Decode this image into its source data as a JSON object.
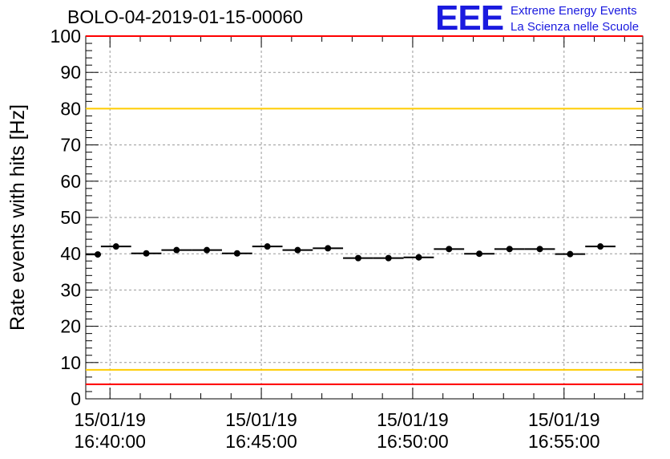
{
  "run_title": "BOLO-04-2019-01-15-00060",
  "logo": {
    "mark": "EEE",
    "line1": "Extreme Energy Events",
    "line2": "La Scienza nelle Scuole",
    "color": "#1a1adf"
  },
  "chart_data": {
    "type": "scatter",
    "title": "BOLO-04-2019-01-15-00060",
    "ylabel": "Rate events with hits [Hz]",
    "xlabel": "",
    "ylim": [
      0,
      100
    ],
    "yticks": [
      0,
      10,
      20,
      30,
      40,
      50,
      60,
      70,
      80,
      90,
      100
    ],
    "xlim": [
      "2019-01-15 16:39:12",
      "2019-01-15 16:57:36"
    ],
    "xticks": [
      {
        "x": "2019-01-15 16:40:00",
        "date": "15/01/19",
        "time": "16:40:00"
      },
      {
        "x": "2019-01-15 16:45:00",
        "date": "15/01/19",
        "time": "16:45:00"
      },
      {
        "x": "2019-01-15 16:50:00",
        "date": "15/01/19",
        "time": "16:50:00"
      },
      {
        "x": "2019-01-15 16:55:00",
        "date": "15/01/19",
        "time": "16:55:00"
      }
    ],
    "grid": true,
    "bin_width_seconds": 60,
    "points": [
      {
        "x": "2019-01-15 16:39:12",
        "y": 39.8
      },
      {
        "x": "2019-01-15 16:40:12",
        "y": 42.0
      },
      {
        "x": "2019-01-15 16:41:12",
        "y": 40.1
      },
      {
        "x": "2019-01-15 16:42:12",
        "y": 41.0
      },
      {
        "x": "2019-01-15 16:43:12",
        "y": 41.0
      },
      {
        "x": "2019-01-15 16:44:12",
        "y": 40.1
      },
      {
        "x": "2019-01-15 16:45:12",
        "y": 42.0
      },
      {
        "x": "2019-01-15 16:46:12",
        "y": 41.0
      },
      {
        "x": "2019-01-15 16:47:12",
        "y": 41.5
      },
      {
        "x": "2019-01-15 16:48:12",
        "y": 38.8
      },
      {
        "x": "2019-01-15 16:49:12",
        "y": 38.8
      },
      {
        "x": "2019-01-15 16:50:12",
        "y": 39.0
      },
      {
        "x": "2019-01-15 16:51:12",
        "y": 41.3
      },
      {
        "x": "2019-01-15 16:52:12",
        "y": 40.0
      },
      {
        "x": "2019-01-15 16:53:12",
        "y": 41.3
      },
      {
        "x": "2019-01-15 16:54:12",
        "y": 41.3
      },
      {
        "x": "2019-01-15 16:55:12",
        "y": 39.9
      },
      {
        "x": "2019-01-15 16:56:12",
        "y": 42.0
      }
    ],
    "reference_lines": [
      {
        "y": 100,
        "color": "#ff0000"
      },
      {
        "y": 80,
        "color": "#ffcc00"
      },
      {
        "y": 8,
        "color": "#ffcc00"
      },
      {
        "y": 4,
        "color": "#ff0000"
      }
    ],
    "marker_color": "#000000"
  }
}
